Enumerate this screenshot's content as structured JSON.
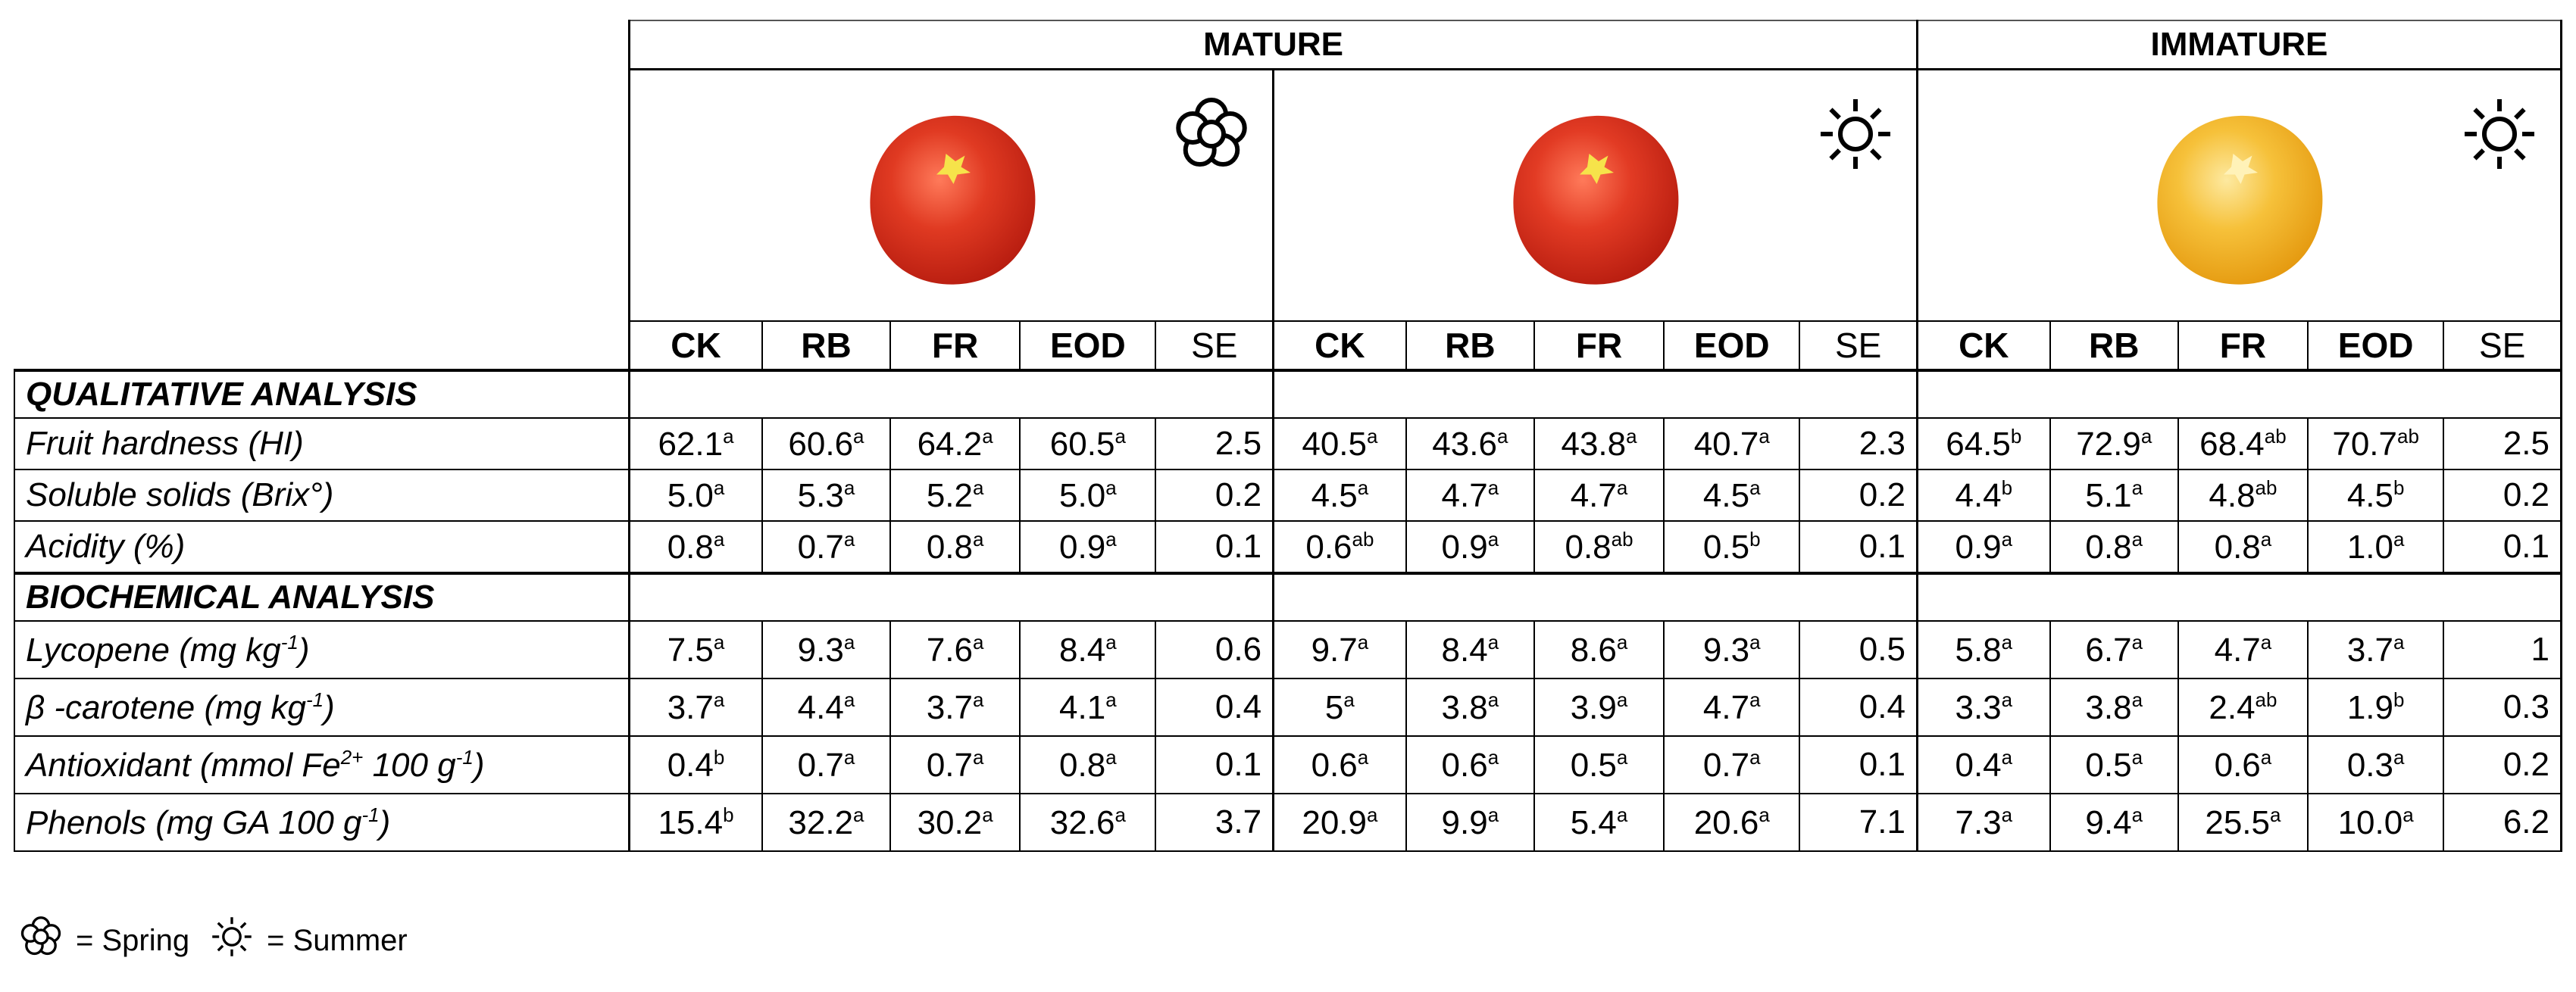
{
  "seasons": [
    {
      "label": "MATURE",
      "span": 2
    },
    {
      "label": "IMMATURE",
      "span": 1
    }
  ],
  "groups": [
    {
      "stage": "mature",
      "season_icon": "flower-icon",
      "fruit_color": "#e03a22"
    },
    {
      "stage": "mature",
      "season_icon": "sun-icon",
      "fruit_color": "#e23b24"
    },
    {
      "stage": "immature",
      "season_icon": "sun-icon",
      "fruit_color": "#f4b526"
    }
  ],
  "columns": [
    "CK",
    "RB",
    "FR",
    "EOD",
    "SE"
  ],
  "sections": [
    {
      "title": "QUALITATIVE ANALYSIS",
      "rows": [
        {
          "label": "Fruit hardness (HI)",
          "cells": [
            [
              "62.1",
              "a"
            ],
            [
              "60.6",
              "a"
            ],
            [
              "64.2",
              "a"
            ],
            [
              "60.5",
              "a"
            ],
            [
              "2.5",
              ""
            ],
            [
              "40.5",
              "a"
            ],
            [
              "43.6",
              "a"
            ],
            [
              "43.8",
              "a"
            ],
            [
              "40.7",
              "a"
            ],
            [
              "2.3",
              ""
            ],
            [
              "64.5",
              "b"
            ],
            [
              "72.9",
              "a"
            ],
            [
              "68.4",
              "ab"
            ],
            [
              "70.7",
              "ab"
            ],
            [
              "2.5",
              ""
            ]
          ]
        },
        {
          "label": "Soluble solids (Brix°)",
          "cells": [
            [
              "5.0",
              "a"
            ],
            [
              "5.3",
              "a"
            ],
            [
              "5.2",
              "a"
            ],
            [
              "5.0",
              "a"
            ],
            [
              "0.2",
              ""
            ],
            [
              "4.5",
              "a"
            ],
            [
              "4.7",
              "a"
            ],
            [
              "4.7",
              "a"
            ],
            [
              "4.5",
              "a"
            ],
            [
              "0.2",
              ""
            ],
            [
              "4.4",
              "b"
            ],
            [
              "5.1",
              "a"
            ],
            [
              "4.8",
              "ab"
            ],
            [
              "4.5",
              "b"
            ],
            [
              "0.2",
              ""
            ]
          ]
        },
        {
          "label": "Acidity (%)",
          "cells": [
            [
              "0.8",
              "a"
            ],
            [
              "0.7",
              "a"
            ],
            [
              "0.8",
              "a"
            ],
            [
              "0.9",
              "a"
            ],
            [
              "0.1",
              ""
            ],
            [
              "0.6",
              "ab"
            ],
            [
              "0.9",
              "a"
            ],
            [
              "0.8",
              "ab"
            ],
            [
              "0.5",
              "b"
            ],
            [
              "0.1",
              ""
            ],
            [
              "0.9",
              "a"
            ],
            [
              "0.8",
              "a"
            ],
            [
              "0.8",
              "a"
            ],
            [
              "1.0",
              "a"
            ],
            [
              "0.1",
              ""
            ]
          ]
        }
      ]
    },
    {
      "title": "BIOCHEMICAL ANALYSIS",
      "rows": [
        {
          "label": "Lycopene (mg kg",
          "label_sup": "-1",
          "label_end": ")",
          "cells": [
            [
              "7.5",
              "a"
            ],
            [
              "9.3",
              "a"
            ],
            [
              "7.6",
              "a"
            ],
            [
              "8.4",
              "a"
            ],
            [
              "0.6",
              ""
            ],
            [
              "9.7",
              "a"
            ],
            [
              "8.4",
              "a"
            ],
            [
              "8.6",
              "a"
            ],
            [
              "9.3",
              "a"
            ],
            [
              "0.5",
              ""
            ],
            [
              "5.8",
              "a"
            ],
            [
              "6.7",
              "a"
            ],
            [
              "4.7",
              "a"
            ],
            [
              "3.7",
              "a"
            ],
            [
              "1",
              ""
            ]
          ]
        },
        {
          "label": "β -carotene (mg kg",
          "label_sup": "-1",
          "label_end": ")",
          "cells": [
            [
              "3.7",
              "a"
            ],
            [
              "4.4",
              "a"
            ],
            [
              "3.7",
              "a"
            ],
            [
              "4.1",
              "a"
            ],
            [
              "0.4",
              ""
            ],
            [
              "5",
              "a"
            ],
            [
              "3.8",
              "a"
            ],
            [
              "3.9",
              "a"
            ],
            [
              "4.7",
              "a"
            ],
            [
              "0.4",
              ""
            ],
            [
              "3.3",
              "a"
            ],
            [
              "3.8",
              "a"
            ],
            [
              "2.4",
              "ab"
            ],
            [
              "1.9",
              "b"
            ],
            [
              "0.3",
              ""
            ]
          ]
        },
        {
          "label": "Antioxidant (mmol Fe",
          "label_sup": "2+",
          "label_mid": " 100 g",
          "label_sup2": "-1",
          "label_end": ")",
          "cells": [
            [
              "0.4",
              "b"
            ],
            [
              "0.7",
              "a"
            ],
            [
              "0.7",
              "a"
            ],
            [
              "0.8",
              "a"
            ],
            [
              "0.1",
              ""
            ],
            [
              "0.6",
              "a"
            ],
            [
              "0.6",
              "a"
            ],
            [
              "0.5",
              "a"
            ],
            [
              "0.7",
              "a"
            ],
            [
              "0.1",
              ""
            ],
            [
              "0.4",
              "a"
            ],
            [
              "0.5",
              "a"
            ],
            [
              "0.6",
              "a"
            ],
            [
              "0.3",
              "a"
            ],
            [
              "0.2",
              ""
            ]
          ]
        },
        {
          "label": "Phenols (mg GA 100 g",
          "label_sup": "-1",
          "label_end": ")",
          "cells": [
            [
              "15.4",
              "b"
            ],
            [
              "32.2",
              "a"
            ],
            [
              "30.2",
              "a"
            ],
            [
              "32.6",
              "a"
            ],
            [
              "3.7",
              ""
            ],
            [
              "20.9",
              "a"
            ],
            [
              "9.9",
              "a"
            ],
            [
              "5.4",
              "a"
            ],
            [
              "20.6",
              "a"
            ],
            [
              "7.1",
              ""
            ],
            [
              "7.3",
              "a"
            ],
            [
              "9.4",
              "a"
            ],
            [
              "25.5",
              "a"
            ],
            [
              "10.0",
              "a"
            ],
            [
              "6.2",
              ""
            ]
          ]
        }
      ]
    }
  ],
  "legend": [
    {
      "icon": "flower-icon",
      "text": "= Spring"
    },
    {
      "icon": "sun-icon",
      "text": "= Summer"
    }
  ]
}
